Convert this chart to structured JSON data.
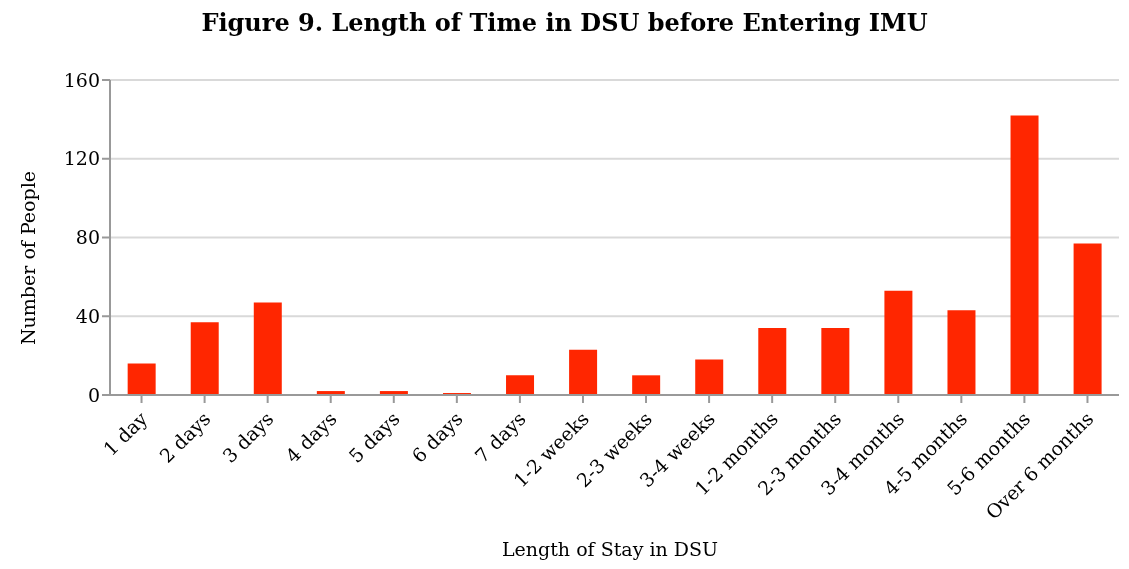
{
  "chart_data": {
    "type": "bar",
    "title": "Figure 9. Length of Time in DSU before Entering IMU",
    "xlabel": "Length of Stay in DSU",
    "ylabel": "Number of People",
    "categories": [
      "1 day",
      "2 days",
      "3 days",
      "4 days",
      "5 days",
      "6 days",
      "7 days",
      "1-2 weeks",
      "2-3 weeks",
      "3-4 weeks",
      "1-2 months",
      "2-3 months",
      "3-4 months",
      "4-5 months",
      "5-6 months",
      "Over 6 months"
    ],
    "values": [
      16,
      37,
      47,
      2,
      2,
      1,
      10,
      23,
      10,
      18,
      34,
      34,
      53,
      43,
      142,
      77
    ],
    "color": "#ff2600",
    "ylim": [
      0,
      160
    ],
    "yticks": [
      0,
      40,
      80,
      120,
      160
    ],
    "grid": "y",
    "legend": false
  }
}
